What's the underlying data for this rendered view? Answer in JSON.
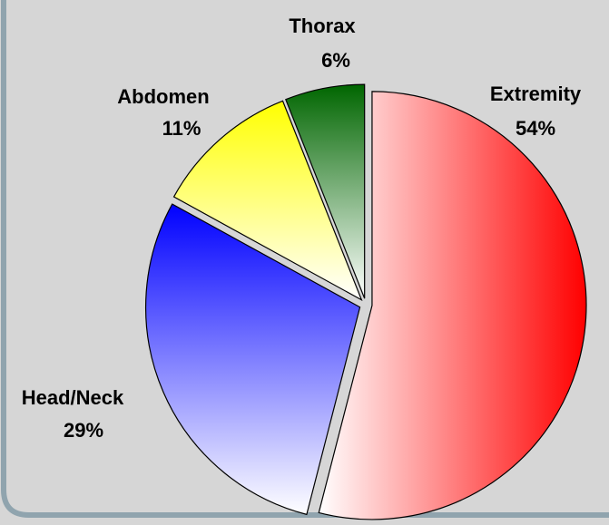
{
  "chart_data": {
    "type": "pie",
    "categories": [
      "Extremity",
      "Head/Neck",
      "Abdomen",
      "Thorax"
    ],
    "values": [
      54,
      29,
      11,
      6
    ],
    "value_labels": [
      "54%",
      "29%",
      "11%",
      "6%"
    ],
    "colors": [
      "#ff0000",
      "#0000ff",
      "#ffff00",
      "#006600"
    ]
  }
}
